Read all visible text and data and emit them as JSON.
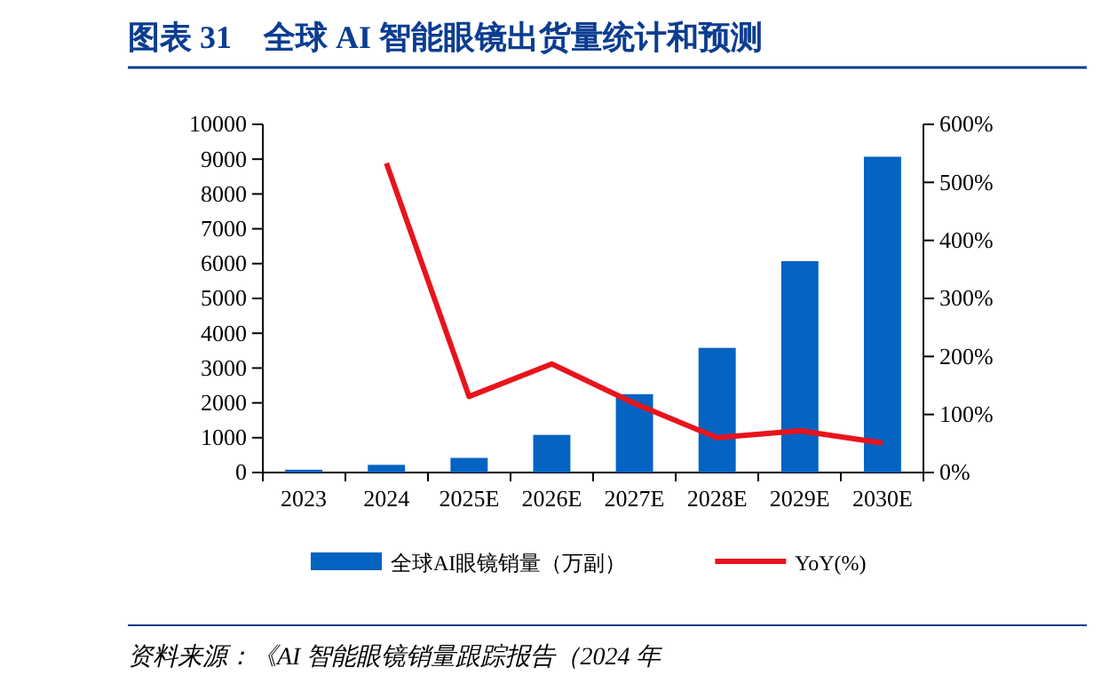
{
  "chart_data": {
    "type": "bar",
    "title": "图表 31　全球 AI 智能眼镜出货量统计和预测",
    "categories": [
      "2023",
      "2024",
      "2025E",
      "2026E",
      "2027E",
      "2028E",
      "2029E",
      "2030E"
    ],
    "series": [
      {
        "name": "全球AI眼镜销量（万副）",
        "color": "#0563c1",
        "values": [
          80,
          220,
          420,
          1080,
          2250,
          3580,
          6070,
          9070
        ]
      },
      {
        "name": "YoY(%)",
        "type": "line",
        "axis": "y2",
        "color": "#e8141c",
        "values": [
          null,
          533,
          131,
          187,
          119,
          60,
          72,
          51
        ]
      }
    ],
    "ylim": [
      0,
      10000
    ],
    "yticks": [
      0,
      1000,
      2000,
      3000,
      4000,
      5000,
      6000,
      7000,
      8000,
      9000,
      10000
    ],
    "y2lim": [
      0,
      600
    ],
    "y2ticks": [
      {
        "value": 0,
        "label": "0%"
      },
      {
        "value": 100,
        "label": "100%"
      },
      {
        "value": 200,
        "label": "200%"
      },
      {
        "value": 300,
        "label": "300%"
      },
      {
        "value": 400,
        "label": "400%"
      },
      {
        "value": 500,
        "label": "500%"
      },
      {
        "value": 600,
        "label": "600%"
      }
    ],
    "legend": "bottom",
    "marker": "none",
    "annotations": [
      "资料来源：《AI 智能眼镜销量跟踪报告（2024 年"
    ]
  }
}
